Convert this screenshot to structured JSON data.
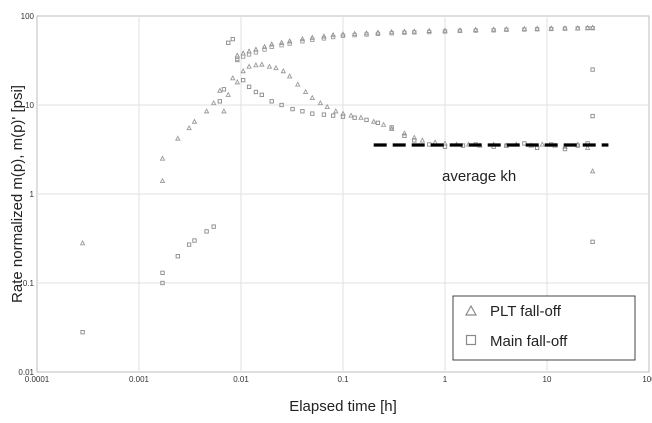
{
  "chart_data": {
    "type": "scatter",
    "title": "",
    "xlabel": "Elapsed time [h]",
    "ylabel": "Rate normalized m(p), m(p)' [psi]",
    "xscale": "log",
    "yscale": "log",
    "xlim": [
      0.0001,
      100
    ],
    "ylim": [
      0.01,
      100
    ],
    "x_ticks": [
      0.0001,
      0.001,
      0.01,
      0.1,
      1,
      10,
      100
    ],
    "x_tick_labels": [
      "0.0001",
      "0.001",
      "0.01",
      "0.1",
      "1",
      "10",
      "100"
    ],
    "y_ticks": [
      0.01,
      0.1,
      1,
      10,
      100
    ],
    "y_tick_labels": [
      "0.01",
      "0.1",
      "1",
      "10",
      "100"
    ],
    "grid": true,
    "legend_position": "bottom-right",
    "series": [
      {
        "name": "PLT fall-off",
        "marker": "triangle",
        "color": "#9a9a9a",
        "x": [
          0.00028,
          0.0017,
          0.0017,
          0.0024,
          0.0031,
          0.0035,
          0.0046,
          0.0054,
          0.0062,
          0.0068,
          0.0075,
          0.0083,
          0.0092,
          0.0105,
          0.012,
          0.014,
          0.016,
          0.019,
          0.022,
          0.026,
          0.03,
          0.036,
          0.043,
          0.05,
          0.06,
          0.07,
          0.085,
          0.1,
          0.12,
          0.15,
          0.2,
          0.25,
          0.3,
          0.4,
          0.5,
          0.6,
          0.8,
          1,
          1.3,
          1.7,
          2.2,
          3,
          4,
          5,
          7,
          9,
          12,
          15,
          20,
          25,
          28
        ],
        "y": [
          0.28,
          1.4,
          2.5,
          4.2,
          5.5,
          6.5,
          8.5,
          10.5,
          14.5,
          8.5,
          13,
          20,
          18,
          24,
          27,
          28,
          28.5,
          27,
          26,
          24,
          21,
          17,
          14,
          12,
          10.5,
          9.5,
          8.5,
          8,
          7.6,
          7.2,
          6.5,
          6,
          5.4,
          4.8,
          4.3,
          4.0,
          3.8,
          3.7,
          3.6,
          3.6,
          3.5,
          3.6,
          3.5,
          3.6,
          3.5,
          3.6,
          3.5,
          3.4,
          3.6,
          3.3,
          1.8
        ]
      },
      {
        "name": "Main fall-off",
        "marker": "square",
        "color": "#8a8a8a",
        "x": [
          0.00028,
          0.0017,
          0.0017,
          0.0024,
          0.0031,
          0.0035,
          0.0046,
          0.0054,
          0.0062,
          0.0068,
          0.0075,
          0.0083,
          0.0092,
          0.0105,
          0.012,
          0.014,
          0.016,
          0.02,
          0.025,
          0.032,
          0.04,
          0.05,
          0.065,
          0.08,
          0.1,
          0.13,
          0.17,
          0.22,
          0.3,
          0.4,
          0.5,
          0.7,
          1,
          1.5,
          2,
          3,
          4,
          6,
          8,
          11,
          15,
          20,
          25,
          28,
          28,
          28
        ],
        "y": [
          0.028,
          0.1,
          0.13,
          0.2,
          0.27,
          0.3,
          0.38,
          0.43,
          11,
          15,
          50,
          55,
          32,
          19,
          16,
          14,
          13,
          11,
          10,
          9,
          8.5,
          8,
          7.8,
          7.6,
          7.4,
          7.2,
          6.8,
          6.3,
          5.6,
          4.5,
          4.0,
          3.6,
          3.4,
          3.5,
          3.6,
          3.4,
          3.5,
          3.7,
          3.3,
          3.6,
          3.2,
          3.5,
          3.7,
          25,
          0.29,
          7.5
        ]
      },
      {
        "name": "",
        "marker": "triangle",
        "color": "#8f8f8f",
        "x": [
          0.0092,
          0.0105,
          0.012,
          0.014,
          0.017,
          0.02,
          0.025,
          0.03,
          0.04,
          0.05,
          0.065,
          0.08,
          0.1,
          0.13,
          0.17,
          0.22,
          0.3,
          0.4,
          0.5,
          0.7,
          1,
          1.4,
          2,
          3,
          4,
          6,
          8,
          11,
          15,
          20,
          25,
          28
        ],
        "y": [
          36,
          38,
          40,
          42,
          45,
          48,
          50,
          52,
          55,
          57,
          59,
          61,
          62,
          63,
          64,
          65,
          66,
          66.5,
          67,
          68,
          68.5,
          69,
          70,
          70.5,
          71,
          71.5,
          72,
          72.5,
          73,
          73,
          73.5,
          74
        ]
      },
      {
        "name": "",
        "marker": "square",
        "color": "#9d9d9d",
        "x": [
          0.0092,
          0.0105,
          0.012,
          0.014,
          0.017,
          0.02,
          0.025,
          0.03,
          0.04,
          0.05,
          0.065,
          0.08,
          0.1,
          0.13,
          0.17,
          0.22,
          0.3,
          0.4,
          0.5,
          0.7,
          1,
          1.4,
          2,
          3,
          4,
          6,
          8,
          11,
          15,
          20,
          25,
          28
        ],
        "y": [
          33,
          35,
          37,
          39,
          42,
          45,
          47,
          49,
          52,
          54,
          56,
          58,
          60,
          61,
          62,
          63,
          64,
          65,
          65.5,
          66,
          67,
          68,
          68.5,
          69,
          70,
          70.5,
          71,
          71.5,
          72,
          72.5,
          73,
          73
        ]
      }
    ],
    "reference_line": {
      "label": "average kh",
      "x": [
        0.2,
        40
      ],
      "y": [
        3.55,
        3.55
      ],
      "style": "dashed",
      "color": "#000000"
    }
  }
}
